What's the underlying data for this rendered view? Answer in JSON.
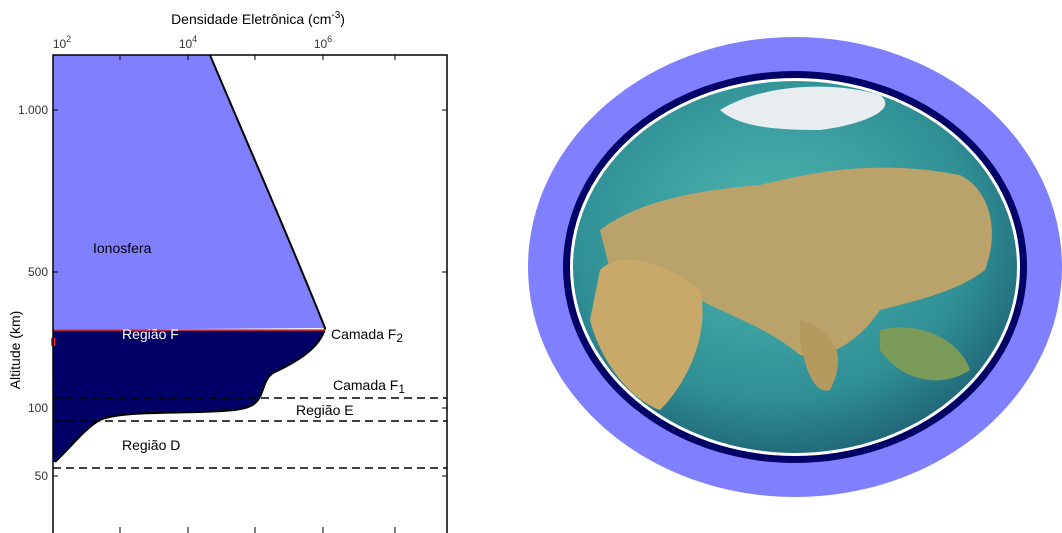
{
  "plot": {
    "x_axis_title": {
      "text": "Densidade Eletrônica (cm",
      "sup": "-3",
      "end": ")"
    },
    "y_axis_title": "Altitude (km)",
    "x_ticks": [
      {
        "base": "10",
        "exp": "2"
      },
      {
        "base": "10",
        "exp": "4"
      },
      {
        "base": "10",
        "exp": "6"
      }
    ],
    "y_ticks": [
      "1.000",
      "500",
      "100",
      "50"
    ],
    "labels": {
      "ionosfera": "Ionosfera",
      "regiao_f": "Região F",
      "camada_f2": {
        "text": "Camada F",
        "sub": "2"
      },
      "camada_f1": {
        "text": "Camada F",
        "sub": "1"
      },
      "regiao_e": "Região E",
      "regiao_d": "Região D"
    }
  }
}
